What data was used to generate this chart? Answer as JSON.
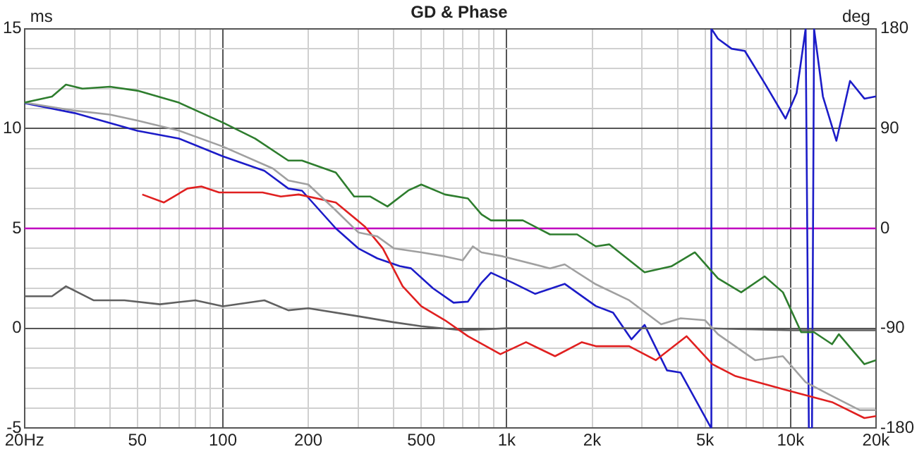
{
  "chart_data": {
    "type": "line",
    "title": "GD & Phase",
    "ylabel": "ms",
    "y2label": "deg",
    "log": "x",
    "grid": true,
    "xlim": [
      20,
      20000
    ],
    "xticks": [
      {
        "value": 20,
        "label": "20Hz"
      },
      {
        "value": 30,
        "label": null
      },
      {
        "value": 40,
        "label": null
      },
      50,
      {
        "value": 60,
        "label": null
      },
      {
        "value": 70,
        "label": null
      },
      {
        "value": 80,
        "label": null
      },
      {
        "value": 90,
        "label": null
      },
      100,
      200,
      {
        "value": 300,
        "label": null
      },
      {
        "value": 400,
        "label": null
      },
      500,
      {
        "value": 600,
        "label": null
      },
      {
        "value": 700,
        "label": null
      },
      {
        "value": 800,
        "label": null
      },
      {
        "value": 900,
        "label": null
      },
      {
        "value": 1000,
        "label": "1k"
      },
      {
        "value": 2000,
        "label": "2k"
      },
      {
        "value": 3000,
        "label": null
      },
      {
        "value": 4000,
        "label": null
      },
      {
        "value": 5000,
        "label": "5k"
      },
      {
        "value": 6000,
        "label": null
      },
      {
        "value": 7000,
        "label": null
      },
      {
        "value": 8000,
        "label": null
      },
      {
        "value": 9000,
        "label": null
      },
      {
        "value": 10000,
        "label": "10k"
      },
      {
        "value": 20000,
        "label": "20k"
      }
    ],
    "ylim": [
      -5,
      15
    ],
    "yticks": [
      -5,
      {
        "value": -4,
        "label": null
      },
      {
        "value": -3,
        "label": null
      },
      {
        "value": -2,
        "label": null
      },
      {
        "value": -1,
        "label": null
      },
      0,
      {
        "value": 1,
        "label": null
      },
      {
        "value": 2,
        "label": null
      },
      {
        "value": 3,
        "label": null
      },
      {
        "value": 4,
        "label": null
      },
      5,
      {
        "value": 6,
        "label": null
      },
      {
        "value": 7,
        "label": null
      },
      {
        "value": 8,
        "label": null
      },
      {
        "value": 9,
        "label": null
      },
      10,
      {
        "value": 11,
        "label": null
      },
      {
        "value": 12,
        "label": null
      },
      {
        "value": 13,
        "label": null
      },
      {
        "value": 14,
        "label": null
      },
      15
    ],
    "y2lim": [
      -180,
      180
    ],
    "y2ticks": [
      -180,
      -90,
      0,
      90,
      180
    ],
    "ref_lines": [
      {
        "axis": "y",
        "value": 5,
        "color": "#c000c0"
      }
    ],
    "series": [
      {
        "color": "#2e7d2e",
        "x": [
          20,
          25,
          28,
          32,
          40,
          50,
          70,
          100,
          130,
          170,
          190,
          250,
          290,
          330,
          380,
          450,
          500,
          606,
          730,
          815,
          880,
          1140,
          1420,
          1770,
          2060,
          2300,
          3060,
          3800,
          4600,
          5550,
          6700,
          8100,
          9400,
          10900,
          12100,
          14000,
          14800,
          18200,
          20000
        ],
        "values": [
          11.3,
          11.6,
          12.2,
          12.0,
          12.1,
          11.9,
          11.3,
          10.3,
          9.5,
          8.4,
          8.4,
          7.8,
          6.6,
          6.6,
          6.1,
          6.9,
          7.2,
          6.7,
          6.5,
          5.7,
          5.4,
          5.4,
          4.7,
          4.7,
          4.1,
          4.2,
          2.8,
          3.1,
          3.8,
          2.5,
          1.8,
          2.6,
          1.8,
          -0.2,
          -0.2,
          -0.8,
          -0.3,
          -1.8,
          -1.6
        ]
      },
      {
        "color": "#a0a0a0",
        "x": [
          20,
          30,
          40,
          50,
          70,
          100,
          150,
          170,
          200,
          250,
          300,
          350,
          400,
          500,
          606,
          700,
          760,
          815,
          970,
          1420,
          1600,
          2060,
          2700,
          3500,
          4100,
          5000,
          5550,
          7500,
          9400,
          11300,
          13600,
          17500,
          20000
        ],
        "values": [
          11.3,
          10.9,
          10.7,
          10.4,
          9.9,
          9.1,
          8.0,
          7.4,
          7.2,
          5.9,
          4.8,
          4.6,
          4.0,
          3.8,
          3.6,
          3.4,
          4.1,
          3.8,
          3.6,
          3.0,
          3.2,
          2.2,
          1.4,
          0.2,
          0.5,
          0.4,
          -0.3,
          -1.6,
          -1.4,
          -2.7,
          -3.3,
          -4.1,
          -4.1
        ]
      },
      {
        "color": "#e02020",
        "x": [
          52,
          62,
          75,
          84,
          97,
          138,
          160,
          185,
          250,
          316,
          366,
          430,
          500,
          606,
          730,
          950,
          1170,
          1480,
          1840,
          2060,
          2700,
          3350,
          4300,
          5300,
          6400,
          9700,
          14000,
          18200,
          20000
        ],
        "values": [
          6.7,
          6.3,
          7.0,
          7.1,
          6.8,
          6.8,
          6.6,
          6.7,
          6.3,
          5.1,
          4.0,
          2.1,
          1.1,
          0.4,
          -0.4,
          -1.3,
          -0.7,
          -1.4,
          -0.7,
          -0.9,
          -0.9,
          -1.6,
          -0.4,
          -1.8,
          -2.4,
          -3.1,
          -3.7,
          -4.5,
          -4.4
        ]
      },
      {
        "color": "#606060",
        "x": [
          20,
          25,
          28,
          35,
          45,
          60,
          80,
          100,
          140,
          170,
          200,
          300,
          400,
          500,
          700,
          1000,
          2000,
          5000,
          10000,
          20000
        ],
        "values": [
          1.6,
          1.6,
          2.1,
          1.4,
          1.4,
          1.2,
          1.4,
          1.1,
          1.4,
          0.9,
          1.0,
          0.6,
          0.3,
          0.1,
          -0.1,
          0.0,
          0.0,
          0.0,
          -0.1,
          -0.1
        ]
      },
      {
        "color": "#1c1cc8",
        "axis": "y2",
        "x": [
          20,
          30,
          50,
          70,
          100,
          140,
          170,
          190,
          250,
          300,
          350,
          420,
          460,
          550,
          650,
          730,
          815,
          880,
          1050,
          1260,
          1600,
          2060,
          2370,
          2750,
          3060,
          3670,
          4100,
          5200,
          5250,
          5260,
          5550,
          6200,
          6900,
          8100,
          9600,
          10500,
          11300,
          11600,
          11900,
          12100,
          13000,
          14500,
          16200,
          18200,
          20000
        ],
        "values": [
          113,
          104,
          88,
          81,
          65,
          52,
          36,
          34,
          0,
          -18,
          -27,
          -34,
          -36,
          -54,
          -67,
          -66,
          -49,
          -40,
          -49,
          -59,
          -50,
          -70,
          -76,
          -100,
          -87,
          -128,
          -130,
          -178,
          -180,
          180,
          171,
          162,
          160,
          131,
          99,
          122,
          180,
          -180,
          -180,
          180,
          119,
          79,
          133,
          117,
          119
        ]
      }
    ]
  }
}
